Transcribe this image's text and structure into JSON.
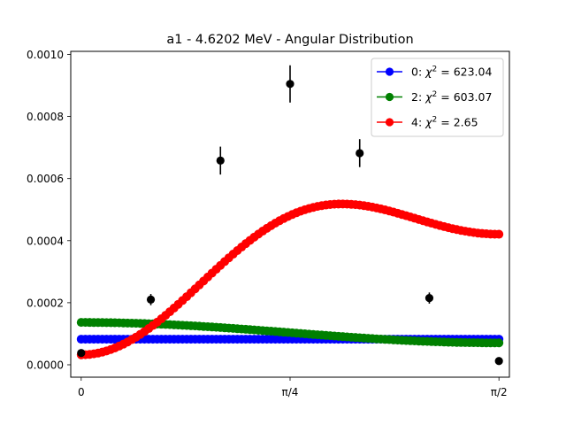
{
  "chart_data": {
    "type": "scatter",
    "title": "a1 - 4.6202 MeV - Angular Distribution",
    "xlabel": "",
    "ylabel": "",
    "xlim": [
      -0.0393,
      1.6101
    ],
    "ylim": [
      -4e-05,
      0.00101
    ],
    "x_ticks": [
      {
        "value": 0,
        "label": "0"
      },
      {
        "value": 0.785398,
        "label": "π/4"
      },
      {
        "value": 1.570796,
        "label": "π/2"
      }
    ],
    "y_ticks": [
      {
        "value": 0.0,
        "label": "0.0000"
      },
      {
        "value": 0.0002,
        "label": "0.0002"
      },
      {
        "value": 0.0004,
        "label": "0.0004"
      },
      {
        "value": 0.0006,
        "label": "0.0006"
      },
      {
        "value": 0.0008,
        "label": "0.0008"
      },
      {
        "value": 0.001,
        "label": "0.0010"
      }
    ],
    "legend_position": "top-right",
    "series": [
      {
        "name": "0: χ² = 623.04",
        "legend_prefix": "0: ",
        "legend_chi": "χ",
        "legend_rest": " = 623.04",
        "color": "#0000ff",
        "order": 0,
        "coeffs": [
          8.25e-05,
          0,
          0
        ],
        "n_points": 100
      },
      {
        "name": "2: χ² = 603.07",
        "legend_prefix": "2: ",
        "legend_chi": "χ",
        "legend_rest": " = 603.07",
        "color": "#008000",
        "order": 2,
        "coeffs": [
          9.25e-05,
          4.4e-05,
          0
        ],
        "n_points": 100
      },
      {
        "name": "4: χ² = 2.65",
        "legend_prefix": "4: ",
        "legend_chi": "χ",
        "legend_rest": " = 2.65",
        "color": "#ff0000",
        "order": 4,
        "coeffs": [
          0.000427,
          -0.000162,
          -0.000233
        ],
        "n_points": 100
      }
    ],
    "experimental": {
      "color": "#000000",
      "points": [
        {
          "x": 0.0,
          "y": 3.8e-05,
          "err": 0.0
        },
        {
          "x": 0.2618,
          "y": 0.00021,
          "err": 1.8e-05
        },
        {
          "x": 0.5236,
          "y": 0.000658,
          "err": 4.5e-05
        },
        {
          "x": 0.7854,
          "y": 0.000905,
          "err": 6e-05
        },
        {
          "x": 1.0472,
          "y": 0.000682,
          "err": 4.5e-05
        },
        {
          "x": 1.309,
          "y": 0.000215,
          "err": 1.8e-05
        },
        {
          "x": 1.5708,
          "y": 1.2e-05,
          "err": 0.0
        }
      ]
    }
  }
}
